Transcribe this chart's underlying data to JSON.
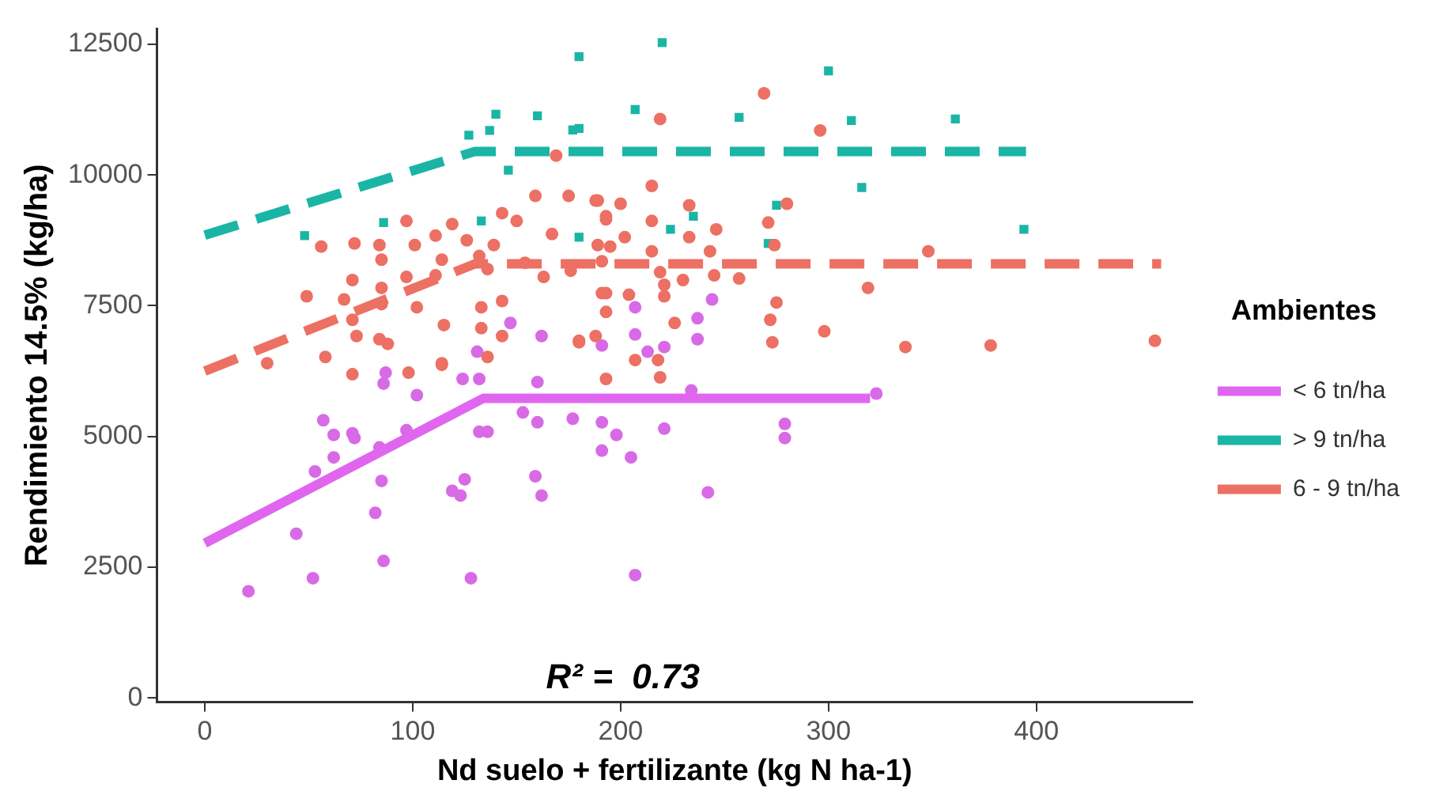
{
  "chart_data": {
    "type": "scatter",
    "xlabel": "Nd suelo + fertilizante (kg N ha-1)",
    "ylabel": "Rendimiento 14.5% (kg/ha)",
    "legend_title": "Ambientes",
    "legend": "right",
    "grid": false,
    "xlim": [
      -23,
      475
    ],
    "xticks": [
      0,
      100,
      200,
      300,
      400
    ],
    "ylim": [
      -80,
      12800
    ],
    "yticks": [
      0,
      2500,
      5000,
      7500,
      10000,
      12500
    ],
    "annotations": [
      "R² =  0.73"
    ],
    "series": [
      {
        "type": "scatter",
        "color": "#ec7063",
        "marker": "circle",
        "x": [
          159,
          175,
          169,
          143,
          150,
          97,
          56,
          72,
          84,
          101,
          111,
          119,
          126,
          139,
          167,
          154,
          132,
          114,
          85,
          71,
          49,
          97,
          111,
          136,
          163,
          176,
          85,
          67,
          85,
          102,
          133,
          143,
          115,
          133,
          71,
          73,
          84,
          58,
          30,
          114,
          136,
          143,
          180,
          188,
          193,
          189,
          193,
          189,
          191,
          269,
          296,
          219,
          215,
          188,
          200,
          233,
          280,
          193,
          215,
          271,
          246,
          202,
          195,
          233,
          215,
          243,
          348,
          274,
          219,
          230,
          245,
          257,
          191,
          204,
          221,
          221,
          193,
          319,
          275,
          272,
          226,
          298,
          273,
          337,
          378,
          180,
          457,
          71,
          98,
          114,
          88,
          193,
          219,
          207,
          218
        ],
        "values": [
          9600,
          9600,
          10370,
          9270,
          9120,
          9120,
          8630,
          8690,
          8660,
          8660,
          8840,
          9060,
          8750,
          8660,
          8870,
          8320,
          8450,
          8380,
          8380,
          7990,
          7680,
          8050,
          8080,
          8200,
          8050,
          8170,
          7840,
          7620,
          7530,
          7470,
          7470,
          7590,
          7130,
          7070,
          7230,
          6920,
          6860,
          6520,
          6400,
          6370,
          6520,
          6920,
          6800,
          6920,
          7740,
          9510,
          9150,
          8660,
          8350,
          11560,
          10850,
          11070,
          9790,
          9510,
          9450,
          9420,
          9450,
          9210,
          9120,
          9090,
          8960,
          8810,
          8630,
          8810,
          8540,
          8540,
          8540,
          8660,
          8140,
          7990,
          8080,
          8020,
          7740,
          7710,
          7900,
          7680,
          7380,
          7840,
          7560,
          7230,
          7170,
          7010,
          6800,
          6710,
          6740,
          6830,
          6830,
          6190,
          6220,
          6400,
          6770,
          6100,
          6130,
          6460,
          6460
        ]
      },
      {
        "type": "scatter",
        "color": "#d86ae6",
        "marker": "circle",
        "x": [
          21,
          52,
          44,
          86,
          128,
          82,
          85,
          53,
          62,
          57,
          62,
          71,
          72,
          84,
          97,
          119,
          123,
          125,
          132,
          136,
          124,
          132,
          102,
          86,
          87,
          160,
          153,
          160,
          159,
          162,
          177,
          191,
          191,
          198,
          205,
          221,
          242,
          207,
          279,
          279,
          323,
          234,
          207,
          244,
          237,
          237,
          207,
          221,
          213,
          147,
          162,
          131,
          191
        ],
        "values": [
          2040,
          2290,
          3140,
          2620,
          2290,
          3540,
          4150,
          4330,
          4600,
          5310,
          5030,
          5060,
          4970,
          4790,
          5120,
          3960,
          3870,
          4180,
          5090,
          5090,
          6100,
          6100,
          5790,
          6010,
          6220,
          6040,
          5460,
          5270,
          4240,
          3870,
          5340,
          4730,
          5270,
          5030,
          4600,
          5150,
          3930,
          2350,
          5240,
          4970,
          5820,
          5880,
          7470,
          7620,
          7260,
          6860,
          6950,
          6710,
          6620,
          7170,
          6920,
          6620,
          6740
        ]
      },
      {
        "type": "scatter",
        "color": "#1ab5a5",
        "marker": "square",
        "x": [
          180,
          220,
          300,
          140,
          160,
          177,
          127,
          137,
          146,
          86,
          48,
          133,
          180,
          207,
          257,
          311,
          361,
          316,
          394,
          275,
          235,
          224,
          271,
          180
        ],
        "values": [
          12260,
          12530,
          11990,
          11160,
          11130,
          10860,
          10760,
          10850,
          10090,
          9090,
          8840,
          9120,
          8810,
          11250,
          11100,
          11040,
          11070,
          9760,
          8960,
          9420,
          9210,
          8960,
          8690,
          10890
        ]
      },
      {
        "type": "line",
        "name": "< 6 tn/ha",
        "color": "#e066f0",
        "marker": "none",
        "line_style": "solid",
        "x": [
          0,
          134,
          320
        ],
        "values": [
          2960,
          5730,
          5730
        ]
      },
      {
        "type": "line",
        "name": "> 9 tn/ha",
        "color": "#1ab5a5",
        "marker": "none",
        "line_style": "dashed",
        "x": [
          0,
          130,
          395
        ],
        "values": [
          8850,
          10450,
          10450
        ]
      },
      {
        "type": "line",
        "name": "6 - 9 tn/ha",
        "color": "#ec7063",
        "marker": "none",
        "line_style": "dashed",
        "x": [
          0,
          130,
          460
        ],
        "values": [
          6250,
          8300,
          8300
        ]
      }
    ]
  }
}
